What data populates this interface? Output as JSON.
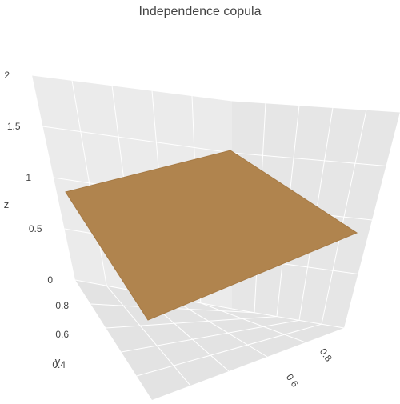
{
  "chart_data": {
    "type": "surface",
    "title": "Independence copula",
    "xlabel": "",
    "ylabel": "y",
    "zlabel": "z",
    "x": [
      0,
      1
    ],
    "y": [
      0,
      1
    ],
    "z": [
      [
        1,
        1
      ],
      [
        1,
        1
      ]
    ],
    "z_range": [
      0,
      2
    ],
    "z_ticks": [
      "0",
      "0.5",
      "1",
      "1.5",
      "2"
    ],
    "y_ticks": [
      "0.4",
      "0.6",
      "0.8"
    ],
    "x_ticks": [
      "0.6",
      "0.8"
    ],
    "surface_color": "#b0844e",
    "grid": true,
    "background_color": "#ebebeb",
    "grid_color": "#ffffff"
  }
}
